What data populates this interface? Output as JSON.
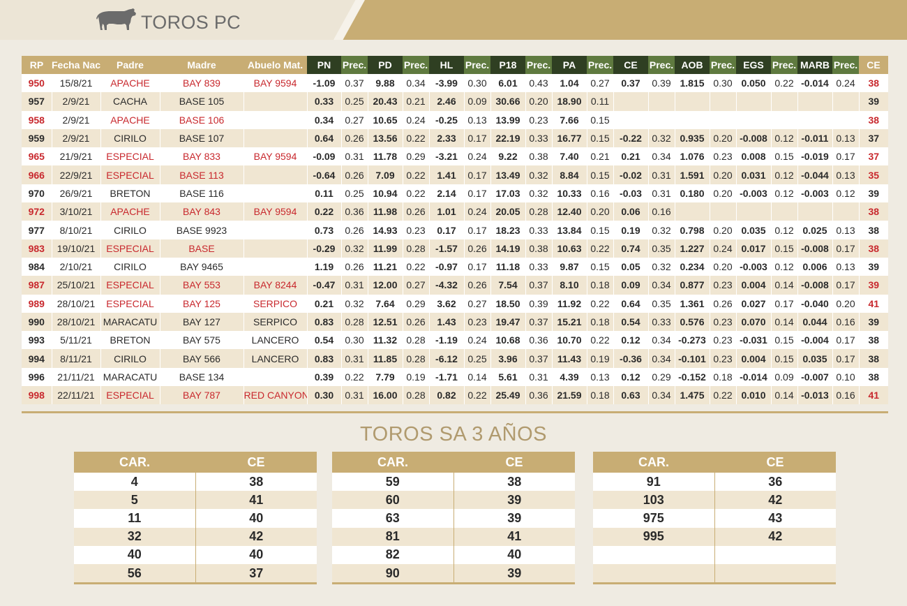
{
  "header": {
    "title": "TOROS PC",
    "logo_icon": "bull-icon"
  },
  "columns": [
    "RP",
    "Fecha Nac.",
    "Padre",
    "Madre",
    "Abuelo Mat.",
    "PN",
    "Prec.",
    "PD",
    "Prec.",
    "HL",
    "Prec.",
    "P18",
    "Prec.",
    "PA",
    "Prec.",
    "CE",
    "Prec.",
    "AOB",
    "Prec.",
    "EGS",
    "Prec.",
    "MARB",
    "Prec.",
    "CE"
  ],
  "rows": [
    {
      "rp": "950",
      "fecha": "15/8/21",
      "padre": "APACHE",
      "madre": "BAY 839",
      "abuelo": "BAY 9594",
      "vals": [
        "-1.09",
        "0.37",
        "9.88",
        "0.34",
        "-3.99",
        "0.30",
        "6.01",
        "0.43",
        "1.04",
        "0.27",
        "0.37",
        "0.39",
        "1.815",
        "0.30",
        "0.050",
        "0.22",
        "-0.014",
        "0.24"
      ],
      "ce": "38",
      "red": true
    },
    {
      "rp": "957",
      "fecha": "2/9/21",
      "padre": "CACHA",
      "madre": "BASE 105",
      "abuelo": "",
      "vals": [
        "0.33",
        "0.25",
        "20.43",
        "0.21",
        "2.46",
        "0.09",
        "30.66",
        "0.20",
        "18.90",
        "0.11",
        "",
        "",
        "",
        "",
        "",
        "",
        "",
        ""
      ],
      "ce": "39",
      "red": false
    },
    {
      "rp": "958",
      "fecha": "2/9/21",
      "padre": "APACHE",
      "madre": "BASE 106",
      "abuelo": "",
      "vals": [
        "0.34",
        "0.27",
        "10.65",
        "0.24",
        "-0.25",
        "0.13",
        "13.99",
        "0.23",
        "7.66",
        "0.15",
        "",
        "",
        "",
        "",
        "",
        "",
        "",
        ""
      ],
      "ce": "38",
      "red": true
    },
    {
      "rp": "959",
      "fecha": "2/9/21",
      "padre": "CIRILO",
      "madre": "BASE 107",
      "abuelo": "",
      "vals": [
        "0.64",
        "0.26",
        "13.56",
        "0.22",
        "2.33",
        "0.17",
        "22.19",
        "0.33",
        "16.77",
        "0.15",
        "-0.22",
        "0.32",
        "0.935",
        "0.20",
        "-0.008",
        "0.12",
        "-0.011",
        "0.13"
      ],
      "ce": "37",
      "red": false
    },
    {
      "rp": "965",
      "fecha": "21/9/21",
      "padre": "ESPECIAL",
      "madre": "BAY 833",
      "abuelo": "BAY 9594",
      "vals": [
        "-0.09",
        "0.31",
        "11.78",
        "0.29",
        "-3.21",
        "0.24",
        "9.22",
        "0.38",
        "7.40",
        "0.21",
        "0.21",
        "0.34",
        "1.076",
        "0.23",
        "0.008",
        "0.15",
        "-0.019",
        "0.17"
      ],
      "ce": "37",
      "red": true
    },
    {
      "rp": "966",
      "fecha": "22/9/21",
      "padre": "ESPECIAL",
      "madre": "BASE 113",
      "abuelo": "",
      "vals": [
        "-0.64",
        "0.26",
        "7.09",
        "0.22",
        "1.41",
        "0.17",
        "13.49",
        "0.32",
        "8.84",
        "0.15",
        "-0.02",
        "0.31",
        "1.591",
        "0.20",
        "0.031",
        "0.12",
        "-0.044",
        "0.13"
      ],
      "ce": "35",
      "red": true
    },
    {
      "rp": "970",
      "fecha": "26/9/21",
      "padre": "BRETON",
      "madre": "BASE 116",
      "abuelo": "",
      "vals": [
        "0.11",
        "0.25",
        "10.94",
        "0.22",
        "2.14",
        "0.17",
        "17.03",
        "0.32",
        "10.33",
        "0.16",
        "-0.03",
        "0.31",
        "0.180",
        "0.20",
        "-0.003",
        "0.12",
        "-0.003",
        "0.12"
      ],
      "ce": "39",
      "red": false
    },
    {
      "rp": "972",
      "fecha": "3/10/21",
      "padre": "APACHE",
      "madre": "BAY 843",
      "abuelo": "BAY 9594",
      "vals": [
        "0.22",
        "0.36",
        "11.98",
        "0.26",
        "1.01",
        "0.24",
        "20.05",
        "0.28",
        "12.40",
        "0.20",
        "0.06",
        "0.16",
        "",
        "",
        "",
        "",
        "",
        ""
      ],
      "ce": "38",
      "red": true
    },
    {
      "rp": "977",
      "fecha": "8/10/21",
      "padre": "CIRILO",
      "madre": "BASE 9923",
      "abuelo": "",
      "vals": [
        "0.73",
        "0.26",
        "14.93",
        "0.23",
        "0.17",
        "0.17",
        "18.23",
        "0.33",
        "13.84",
        "0.15",
        "0.19",
        "0.32",
        "0.798",
        "0.20",
        "0.035",
        "0.12",
        "0.025",
        "0.13"
      ],
      "ce": "38",
      "red": false
    },
    {
      "rp": "983",
      "fecha": "19/10/21",
      "padre": "ESPECIAL",
      "madre": "BASE",
      "abuelo": "",
      "vals": [
        "-0.29",
        "0.32",
        "11.99",
        "0.28",
        "-1.57",
        "0.26",
        "14.19",
        "0.38",
        "10.63",
        "0.22",
        "0.74",
        "0.35",
        "1.227",
        "0.24",
        "0.017",
        "0.15",
        "-0.008",
        "0.17"
      ],
      "ce": "38",
      "red": true
    },
    {
      "rp": "984",
      "fecha": "2/10/21",
      "padre": "CIRILO",
      "madre": "BAY 9465",
      "abuelo": "",
      "vals": [
        "1.19",
        "0.26",
        "11.21",
        "0.22",
        "-0.97",
        "0.17",
        "11.18",
        "0.33",
        "9.87",
        "0.15",
        "0.05",
        "0.32",
        "0.234",
        "0.20",
        "-0.003",
        "0.12",
        "0.006",
        "0.13"
      ],
      "ce": "39",
      "red": false
    },
    {
      "rp": "987",
      "fecha": "25/10/21",
      "padre": "ESPECIAL",
      "madre": "BAY 553",
      "abuelo": "BAY 8244",
      "vals": [
        "-0.47",
        "0.31",
        "12.00",
        "0.27",
        "-4.32",
        "0.26",
        "7.54",
        "0.37",
        "8.10",
        "0.18",
        "0.09",
        "0.34",
        "0.877",
        "0.23",
        "0.004",
        "0.14",
        "-0.008",
        "0.17"
      ],
      "ce": "39",
      "red": true
    },
    {
      "rp": "989",
      "fecha": "28/10/21",
      "padre": "ESPECIAL",
      "madre": "BAY 125",
      "abuelo": "SERPICO",
      "vals": [
        "0.21",
        "0.32",
        "7.64",
        "0.29",
        "3.62",
        "0.27",
        "18.50",
        "0.39",
        "11.92",
        "0.22",
        "0.64",
        "0.35",
        "1.361",
        "0.26",
        "0.027",
        "0.17",
        "-0.040",
        "0.20"
      ],
      "ce": "41",
      "red": true
    },
    {
      "rp": "990",
      "fecha": "28/10/21",
      "padre": "MARACATU",
      "madre": "BAY 127",
      "abuelo": "SERPICO",
      "vals": [
        "0.83",
        "0.28",
        "12.51",
        "0.26",
        "1.43",
        "0.23",
        "19.47",
        "0.37",
        "15.21",
        "0.18",
        "0.54",
        "0.33",
        "0.576",
        "0.23",
        "0.070",
        "0.14",
        "0.044",
        "0.16"
      ],
      "ce": "39",
      "red": false
    },
    {
      "rp": "993",
      "fecha": "5/11/21",
      "padre": "BRETON",
      "madre": "BAY 575",
      "abuelo": "LANCERO",
      "vals": [
        "0.54",
        "0.30",
        "11.32",
        "0.28",
        "-1.19",
        "0.24",
        "10.68",
        "0.36",
        "10.70",
        "0.22",
        "0.12",
        "0.34",
        "-0.273",
        "0.23",
        "-0.031",
        "0.15",
        "-0.004",
        "0.17"
      ],
      "ce": "38",
      "red": false
    },
    {
      "rp": "994",
      "fecha": "8/11/21",
      "padre": "CIRILO",
      "madre": "BAY 566",
      "abuelo": "LANCERO",
      "vals": [
        "0.83",
        "0.31",
        "11.85",
        "0.28",
        "-6.12",
        "0.25",
        "3.96",
        "0.37",
        "11.43",
        "0.19",
        "-0.36",
        "0.34",
        "-0.101",
        "0.23",
        "0.004",
        "0.15",
        "0.035",
        "0.17"
      ],
      "ce": "38",
      "red": false
    },
    {
      "rp": "996",
      "fecha": "21/11/21",
      "padre": "MARACATU",
      "madre": "BASE 134",
      "abuelo": "",
      "vals": [
        "0.39",
        "0.22",
        "7.79",
        "0.19",
        "-1.71",
        "0.14",
        "5.61",
        "0.31",
        "4.39",
        "0.13",
        "0.12",
        "0.29",
        "-0.152",
        "0.18",
        "-0.014",
        "0.09",
        "-0.007",
        "0.10"
      ],
      "ce": "38",
      "red": false
    },
    {
      "rp": "998",
      "fecha": "22/11/21",
      "padre": "ESPECIAL",
      "madre": "BAY 787",
      "abuelo": "RED CANYON",
      "vals": [
        "0.30",
        "0.31",
        "16.00",
        "0.28",
        "0.82",
        "0.22",
        "25.49",
        "0.36",
        "21.59",
        "0.18",
        "0.63",
        "0.34",
        "1.475",
        "0.22",
        "0.010",
        "0.14",
        "-0.013",
        "0.16"
      ],
      "ce": "41",
      "red": true
    }
  ],
  "section2": {
    "title": "TOROS SA 3 AÑOS",
    "headers": [
      "CAR.",
      "CE"
    ],
    "tables": [
      {
        "rows": [
          {
            "car": "4",
            "ce": "38"
          },
          {
            "car": "5",
            "ce": "41"
          },
          {
            "car": "11",
            "ce": "40"
          },
          {
            "car": "32",
            "ce": "42"
          },
          {
            "car": "40",
            "ce": "40"
          },
          {
            "car": "56",
            "ce": "37"
          }
        ]
      },
      {
        "rows": [
          {
            "car": "59",
            "ce": "38"
          },
          {
            "car": "60",
            "ce": "39"
          },
          {
            "car": "63",
            "ce": "39"
          },
          {
            "car": "81",
            "ce": "41"
          },
          {
            "car": "82",
            "ce": "40"
          },
          {
            "car": "90",
            "ce": "39"
          }
        ]
      },
      {
        "rows": [
          {
            "car": "91",
            "ce": "36",
            "red": true
          },
          {
            "car": "103",
            "ce": "42"
          },
          {
            "car": "975",
            "ce": "43"
          },
          {
            "car": "995",
            "ce": "42"
          },
          {
            "car": "",
            "ce": ""
          },
          {
            "car": "",
            "ce": ""
          }
        ]
      }
    ]
  },
  "colors": {
    "gold": "#c8ad74",
    "dark_green": "#2f3f22",
    "green": "#5f7a3f",
    "red": "#c8282d"
  }
}
